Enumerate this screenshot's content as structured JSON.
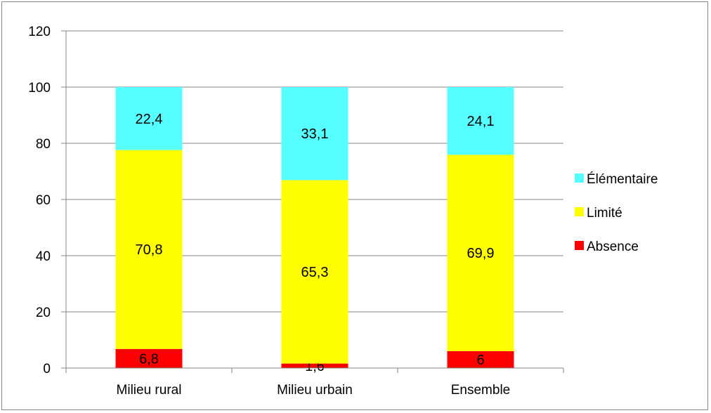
{
  "chart_data": {
    "type": "bar",
    "stacked": true,
    "title": "",
    "xlabel": "",
    "ylabel": "",
    "categories": [
      "Milieu rural",
      "Milieu urbain",
      "Ensemble"
    ],
    "series": [
      {
        "name": "Absence",
        "color": "#ff0000",
        "values": [
          6.8,
          1.6,
          6
        ],
        "labels": [
          "6,8",
          "1,6",
          "6"
        ]
      },
      {
        "name": "Limité",
        "color": "#ffff00",
        "values": [
          70.8,
          65.3,
          69.9
        ],
        "labels": [
          "70,8",
          "65,3",
          "69,9"
        ]
      },
      {
        "name": "Élémentaire",
        "color": "#55ffff",
        "values": [
          22.4,
          33.1,
          24.1
        ],
        "labels": [
          "22,4",
          "33,1",
          "24,1"
        ]
      }
    ],
    "ylim": [
      0,
      120
    ],
    "yticks": [
      0,
      20,
      40,
      60,
      80,
      100,
      120
    ],
    "ytick_labels": [
      "0",
      "20",
      "40",
      "60",
      "80",
      "100",
      "120"
    ],
    "grid": true,
    "legend_position": "right",
    "legend_order": [
      "Élémentaire",
      "Limité",
      "Absence"
    ]
  }
}
